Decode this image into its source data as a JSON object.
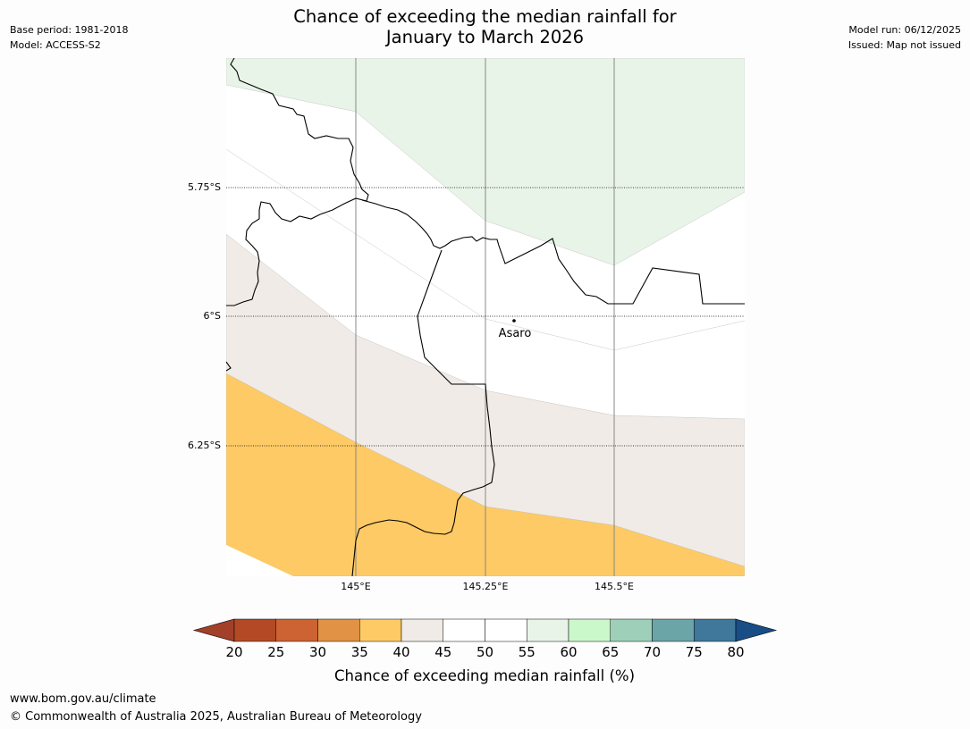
{
  "header": {
    "title_line1": "Chance of exceeding the median rainfall for",
    "title_line2": "January to March 2026",
    "base_period": "Base period: 1981-2018",
    "model": "Model: ACCESS-S2",
    "model_run": "Model run: 06/12/2025",
    "issued": "Issued: Map not issued"
  },
  "map": {
    "latitude_labels": [
      "5.75°S",
      "6°S",
      "6.25°S"
    ],
    "longitude_labels": [
      "145°E",
      "145.25°E",
      "145.5°E"
    ],
    "place": {
      "name": "Asaro",
      "lat": -6.01,
      "lon": 145.305
    },
    "extent": {
      "lon_min": 144.75,
      "lon_max": 145.75,
      "lat_min": -6.5,
      "lat_max": -5.5
    },
    "category_colors": {
      "c35_40": "#fdca65",
      "c40_45": "#f0ebe6",
      "c45_55": "#ffffff",
      "c55_60": "#e9f4e9"
    }
  },
  "colorbar": {
    "ticks": [
      "20",
      "25",
      "30",
      "35",
      "40",
      "45",
      "50",
      "55",
      "60",
      "65",
      "70",
      "75",
      "80"
    ],
    "colors": [
      "#a3402a",
      "#b44a25",
      "#cd6332",
      "#e19244",
      "#fdca65",
      "#f0ebe6",
      "#ffffff",
      "#ffffff",
      "#e9f4e9",
      "#caf8ca",
      "#9ecfb9",
      "#6ba5a7",
      "#3f789a",
      "#184d86"
    ],
    "label": "Chance of exceeding median rainfall (%)"
  },
  "footer": {
    "url": "www.bom.gov.au/climate",
    "copyright": "© Commonwealth of Australia 2025, Australian Bureau of Meteorology"
  }
}
